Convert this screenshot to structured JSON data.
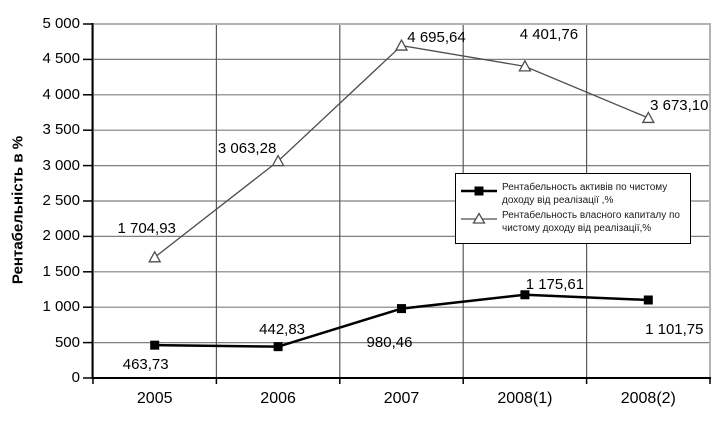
{
  "chart_data": {
    "type": "line",
    "ylabel": "Рентабельність в %",
    "xlabel": "",
    "categories": [
      "2005",
      "2006",
      "2007",
      "2008(1)",
      "2008(2)"
    ],
    "series": [
      {
        "name": "Рентабельность активів по чистому доходу від реалізації ,%",
        "marker": "filled-square",
        "color": "#000000",
        "values": [
          463.73,
          442.83,
          980.46,
          1175.61,
          1101.75
        ],
        "point_labels": [
          "463,73",
          "442,83",
          "980,46",
          "1 175,61",
          "1 101,75"
        ]
      },
      {
        "name": "Рентабельность власного капиталу по чистому доходу від реалізації,%",
        "marker": "open-triangle",
        "color": "#4d4d4d",
        "values": [
          1704.93,
          3063.28,
          4695.64,
          4401.76,
          3673.1
        ],
        "point_labels": [
          "1 704,93",
          "3 063,28",
          "4 695,64",
          "4 401,76",
          "3 673,10"
        ]
      }
    ],
    "ylim": [
      0,
      5000
    ],
    "ytick_step": 500,
    "ytick_labels": [
      "0",
      "500",
      "1 000",
      "1 500",
      "2 000",
      "2 500",
      "3 000",
      "3 500",
      "4 000",
      "4 500",
      "5 000"
    ],
    "grid": {
      "horizontal": true,
      "vertical_category_boundaries": true
    },
    "legend_position": "middle-right"
  },
  "colors": {
    "background": "#ffffff",
    "plot_border": "#b3b3b3",
    "gridline_horizontal": "#7f7f7f",
    "gridline_vertical": "#595959",
    "axis": "#000000",
    "text": "#000000",
    "series_assets": "#000000",
    "series_equity": "#4d4d4d"
  }
}
